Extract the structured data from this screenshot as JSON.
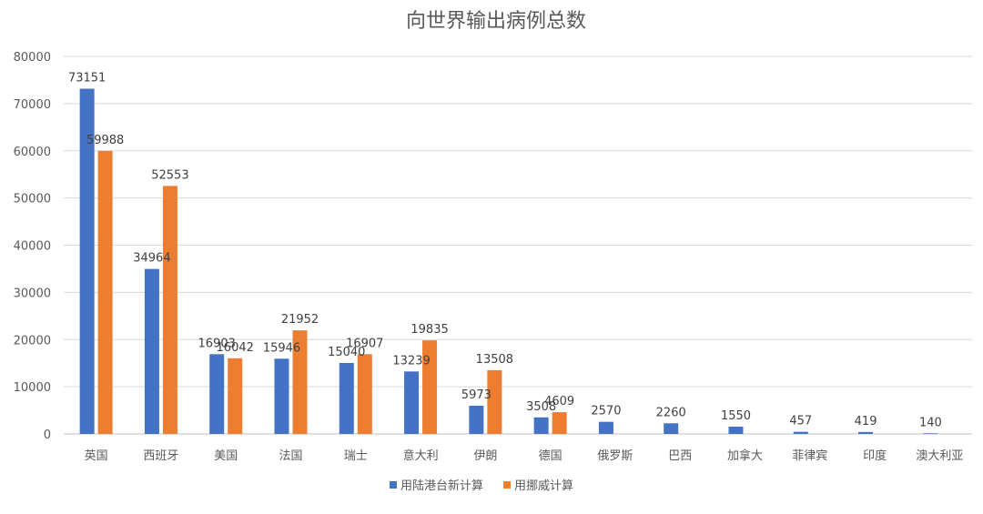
{
  "chart_data": {
    "type": "bar",
    "title": "向世界输出病例总数",
    "categories": [
      "英国",
      "西班牙",
      "美国",
      "法国",
      "瑞士",
      "意大利",
      "伊朗",
      "德国",
      "俄罗斯",
      "巴西",
      "加拿大",
      "菲律宾",
      "印度",
      "澳大利亚"
    ],
    "series": [
      {
        "name": "用陆港台新计算",
        "color": "#4472C4",
        "values": [
          73151,
          34964,
          16903,
          15946,
          15040,
          13239,
          5973,
          3508,
          2570,
          2260,
          1550,
          457,
          419,
          140
        ]
      },
      {
        "name": "用挪威计算",
        "color": "#ED7D31",
        "values": [
          59988,
          52553,
          16042,
          21952,
          16907,
          19835,
          13508,
          4609,
          null,
          null,
          null,
          null,
          null,
          null
        ]
      }
    ],
    "yticks": [
      "0",
      "10000",
      "20000",
      "30000",
      "40000",
      "50000",
      "60000",
      "70000",
      "80000"
    ],
    "ylim": [
      0,
      80000
    ],
    "grid": true,
    "legend_position": "bottom"
  }
}
